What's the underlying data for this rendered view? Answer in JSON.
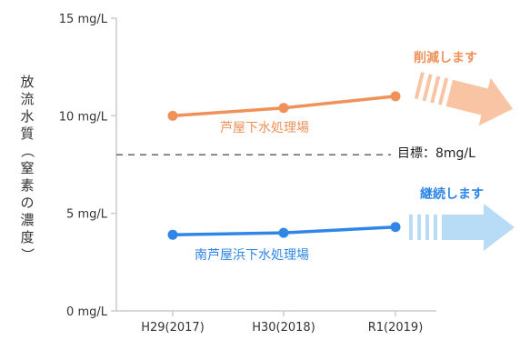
{
  "chart_data": {
    "type": "line",
    "categories": [
      "H29(2017)",
      "H30(2018)",
      "R1(2019)"
    ],
    "y_ticks": [
      "0 mg/L",
      "5 mg/L",
      "10 mg/L",
      "15 mg/L"
    ],
    "y_tick_values": [
      0,
      5,
      10,
      15
    ],
    "ylim": [
      0,
      15
    ],
    "ylabel_chars": [
      "放",
      "流",
      "水",
      "質",
      "（",
      "窒",
      "素",
      "の",
      "濃",
      "度",
      "）"
    ],
    "grid": false,
    "series": [
      {
        "name": "芦屋下水処理場",
        "values": [
          10.0,
          10.4,
          11.0
        ],
        "color": "#f0915a",
        "arrow_color": "#f9c4a3",
        "annotation": "削減します"
      },
      {
        "name": "南芦屋浜下水処理場",
        "values": [
          3.9,
          4.0,
          4.3
        ],
        "color": "#2f86e6",
        "arrow_color": "#b8dcf5",
        "annotation": "継続します"
      }
    ],
    "target_line": {
      "value": 8,
      "label": "目標：8mg/L"
    }
  }
}
